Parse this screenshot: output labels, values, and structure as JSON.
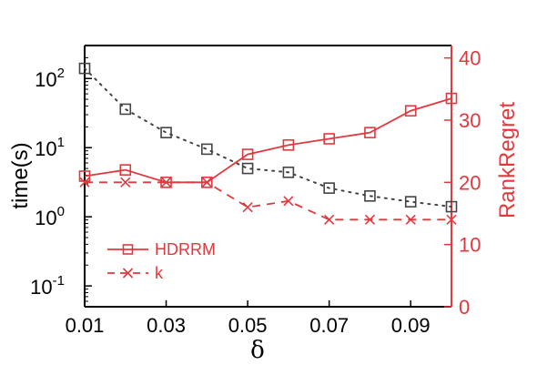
{
  "chart_data": {
    "type": "line",
    "xlabel": "δ",
    "ylabel_left": "time(s)",
    "ylabel_right": "RankRegret",
    "x": [
      0.01,
      0.02,
      0.03,
      0.04,
      0.05,
      0.06,
      0.07,
      0.08,
      0.09,
      0.1
    ],
    "xticks": [
      "0.01",
      "0.03",
      "0.05",
      "0.07",
      "0.09"
    ],
    "xtick_values": [
      0.01,
      0.03,
      0.05,
      0.07,
      0.09
    ],
    "xlim": [
      0.01,
      0.1
    ],
    "left_axis": {
      "scale": "log",
      "ylim": [
        0.05,
        300
      ],
      "ticks": [
        {
          "value": 0.1,
          "base": "10",
          "exp": "-1"
        },
        {
          "value": 1,
          "base": "10",
          "exp": "0"
        },
        {
          "value": 10,
          "base": "10",
          "exp": "1"
        },
        {
          "value": 100,
          "base": "10",
          "exp": "2"
        }
      ]
    },
    "right_axis": {
      "scale": "linear",
      "ylim": [
        0,
        42
      ],
      "ticks": [
        "0",
        "10",
        "20",
        "30",
        "40"
      ],
      "tick_values": [
        0,
        10,
        20,
        30,
        40
      ]
    },
    "series": [
      {
        "axis": "left",
        "style": "dotted",
        "marker": "square",
        "color": "#444444",
        "values": [
          140,
          36,
          16.5,
          9.5,
          5.0,
          4.4,
          2.6,
          2.0,
          1.65,
          1.4
        ]
      },
      {
        "axis": "right",
        "name": "HDRRM",
        "style": "solid",
        "marker": "square",
        "color": "#e0393e",
        "values": [
          21,
          22,
          20,
          20,
          24.5,
          26,
          27,
          28,
          31.5,
          33.5
        ]
      },
      {
        "axis": "right",
        "name": "k",
        "style": "dashed",
        "marker": "x",
        "color": "#e0393e",
        "values": [
          20,
          20,
          20,
          20,
          16,
          17,
          14,
          14,
          14,
          14
        ]
      }
    ],
    "legend_position": "bottom-left",
    "grid": false,
    "colors": {
      "left_axis": "#000000",
      "right_axis": "#e0393e",
      "black_series": "#444444"
    }
  }
}
